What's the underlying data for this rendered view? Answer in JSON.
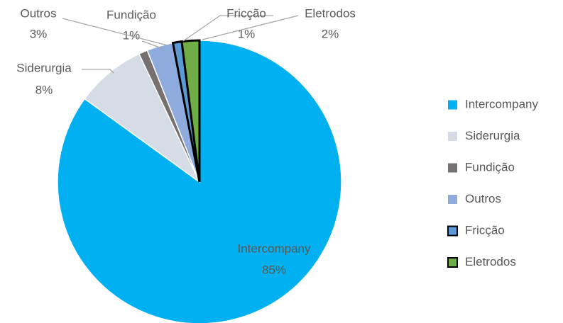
{
  "chart_data": {
    "type": "pie",
    "categories": [
      "Intercompany",
      "Siderurgia",
      "Fundição",
      "Outros",
      "Fricção",
      "Eletrodos"
    ],
    "values": [
      85,
      8,
      1,
      3,
      1,
      2
    ],
    "value_labels": [
      "85%",
      "8%",
      "1%",
      "3%",
      "1%",
      "2%"
    ],
    "colors": [
      "#00b0f0",
      "#d6dce5",
      "#767171",
      "#8faadc",
      "#5b9bd5",
      "#70ad47"
    ],
    "edgecolors": [
      "#ffffff",
      "#ffffff",
      "#ffffff",
      "#ffffff",
      "#000000",
      "#000000"
    ],
    "legend": "right"
  }
}
